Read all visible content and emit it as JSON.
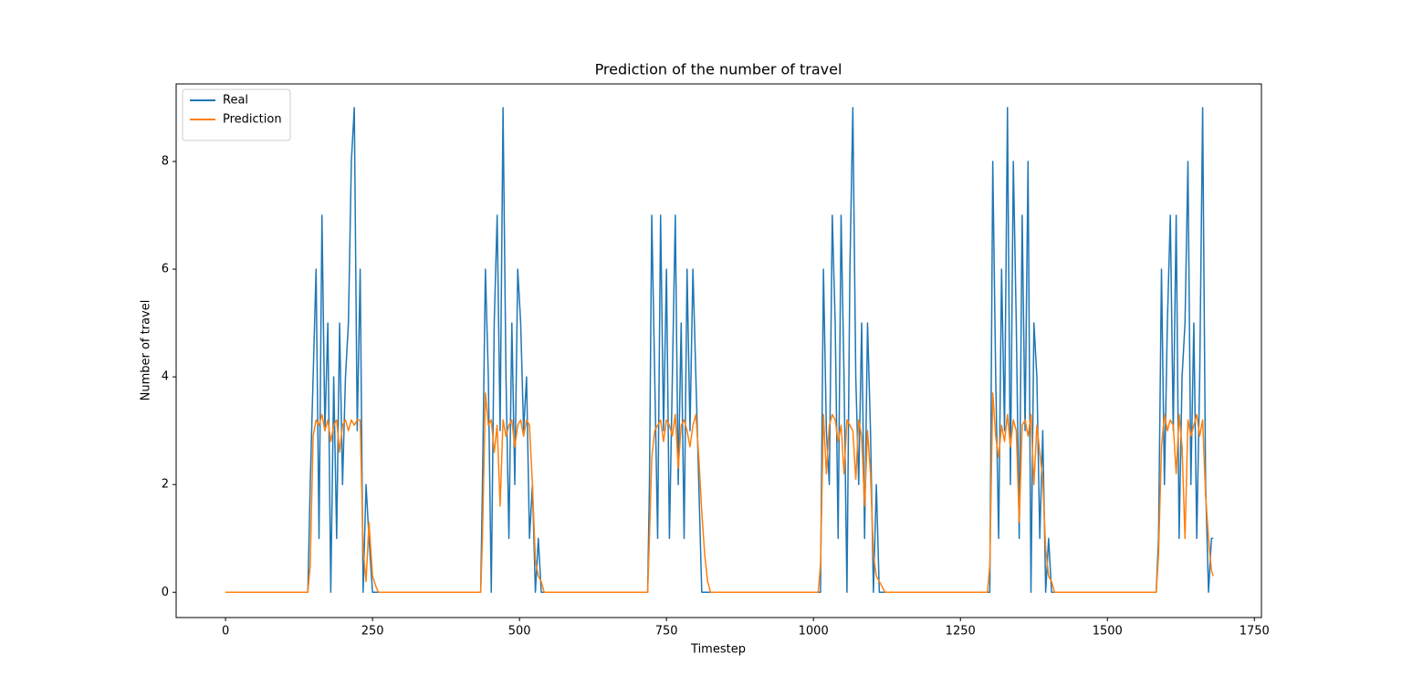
{
  "chart_data": {
    "type": "line",
    "title": "Prediction of the number of travel",
    "x_label": "Timestep",
    "y_label": "Number of travel",
    "x": [
      0,
      140,
      144,
      149,
      154,
      159,
      164,
      169,
      174,
      179,
      184,
      189,
      194,
      199,
      204,
      209,
      214,
      219,
      224,
      229,
      234,
      239,
      244,
      250,
      256,
      260,
      434,
      437,
      442,
      447,
      452,
      457,
      462,
      467,
      472,
      477,
      482,
      487,
      492,
      497,
      502,
      507,
      512,
      517,
      522,
      527,
      532,
      537,
      542,
      718,
      721,
      725,
      730,
      735,
      740,
      745,
      750,
      755,
      760,
      765,
      770,
      775,
      780,
      785,
      790,
      795,
      800,
      805,
      810,
      815,
      820,
      825,
      1008,
      1012,
      1017,
      1022,
      1027,
      1032,
      1037,
      1042,
      1047,
      1052,
      1057,
      1062,
      1067,
      1072,
      1077,
      1082,
      1087,
      1092,
      1097,
      1102,
      1107,
      1112,
      1117,
      1122,
      1296,
      1300,
      1305,
      1310,
      1315,
      1320,
      1325,
      1330,
      1335,
      1340,
      1345,
      1350,
      1355,
      1360,
      1365,
      1370,
      1375,
      1380,
      1385,
      1390,
      1395,
      1400,
      1405,
      1410,
      1583,
      1587,
      1592,
      1597,
      1602,
      1607,
      1612,
      1617,
      1622,
      1627,
      1632,
      1637,
      1642,
      1647,
      1652,
      1657,
      1662,
      1667,
      1672,
      1677,
      1680
    ],
    "series": [
      {
        "name": "Real",
        "color": "#1f77b4",
        "values": [
          0,
          0,
          2,
          4,
          6,
          1,
          7,
          3,
          5,
          0,
          4,
          1,
          5,
          2,
          4,
          5,
          8,
          9,
          3,
          6,
          0,
          2,
          1,
          0,
          0,
          0,
          0,
          2,
          6,
          4,
          0,
          5,
          7,
          3,
          9,
          4,
          1,
          5,
          2,
          6,
          5,
          3,
          4,
          1,
          2,
          0,
          1,
          0,
          0,
          0,
          2,
          7,
          4,
          1,
          7,
          3,
          6,
          1,
          4,
          7,
          2,
          5,
          1,
          6,
          3,
          6,
          4,
          2,
          0,
          0,
          0,
          0,
          0,
          0,
          6,
          3,
          2,
          7,
          5,
          1,
          7,
          4,
          0,
          6,
          9,
          4,
          2,
          5,
          1,
          5,
          3,
          0,
          2,
          0,
          0,
          0,
          0,
          0,
          8,
          4,
          1,
          6,
          3,
          9,
          2,
          8,
          5,
          1,
          7,
          3,
          8,
          0,
          5,
          4,
          1,
          3,
          0,
          1,
          0,
          0,
          0,
          1,
          6,
          2,
          5,
          7,
          3,
          7,
          1,
          4,
          5,
          8,
          2,
          5,
          1,
          4,
          9,
          2,
          0,
          1,
          1
        ]
      },
      {
        "name": "Prediction",
        "color": "#ff7f0e",
        "values": [
          0,
          0,
          0.5,
          2.9,
          3.2,
          3.1,
          3.3,
          3.0,
          3.2,
          2.8,
          3.1,
          3.2,
          2.6,
          3.1,
          3.2,
          3.0,
          3.2,
          3.1,
          3.2,
          3.2,
          0.8,
          0.2,
          1.3,
          0.3,
          0.1,
          0,
          0,
          1,
          3.7,
          3.1,
          3.2,
          2.6,
          3.1,
          1.6,
          3.2,
          2.9,
          3.1,
          3.2,
          2.7,
          3.1,
          3.2,
          2.9,
          3.2,
          3.1,
          2.0,
          0.6,
          0.3,
          0.2,
          0,
          0,
          1,
          2.5,
          3.0,
          3.1,
          3.2,
          2.8,
          3.2,
          3.1,
          2.9,
          3.3,
          2.3,
          3.1,
          3.2,
          3.0,
          2.7,
          3.1,
          3.3,
          2.5,
          1.5,
          0.7,
          0.2,
          0,
          0,
          0.5,
          3.3,
          2.2,
          3.1,
          3.3,
          3.2,
          2.8,
          3.1,
          2.2,
          3.2,
          3.1,
          3.0,
          2.1,
          3.2,
          2.9,
          1.6,
          3.0,
          2.2,
          0.7,
          0.3,
          0.2,
          0.1,
          0,
          0,
          0.5,
          3.7,
          2.9,
          2.5,
          3.1,
          2.8,
          3.3,
          2.7,
          3.2,
          3.0,
          1.3,
          3.1,
          3.2,
          2.9,
          3.3,
          2.0,
          3.1,
          2.6,
          2.1,
          0.8,
          0.3,
          0.2,
          0,
          0,
          0.7,
          2.7,
          3.3,
          3.0,
          3.2,
          3.1,
          2.2,
          3.3,
          2.7,
          1.0,
          3.2,
          2.9,
          3.1,
          3.3,
          2.9,
          3.2,
          1.8,
          1.0,
          0.4,
          0.3
        ]
      }
    ],
    "xlim": [
      -84,
      1762
    ],
    "ylim": [
      -0.47,
      9.44
    ],
    "xticks": [
      0,
      250,
      500,
      750,
      1000,
      1250,
      1500,
      1750
    ],
    "yticks": [
      0,
      2,
      4,
      6,
      8
    ],
    "legend": "upper left"
  }
}
